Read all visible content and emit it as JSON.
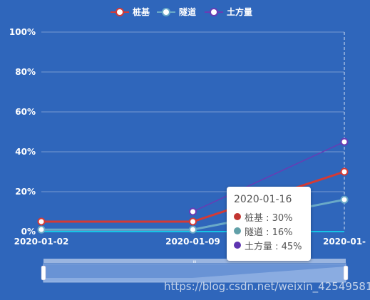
{
  "chart_data": {
    "type": "line",
    "categories": [
      "2020-01-02",
      "2020-01-09",
      "2020-01-16"
    ],
    "series": [
      {
        "name": "桩基",
        "values": [
          5,
          5,
          30
        ],
        "color": "#d43a35"
      },
      {
        "name": "隧道",
        "values": [
          1,
          1,
          16
        ],
        "color": "#6aaac8"
      },
      {
        "name": "土方量",
        "values": [
          null,
          10,
          45
        ],
        "color": "#6a3bb4"
      }
    ],
    "ylim": [
      0,
      100
    ],
    "yticks": [
      "0%",
      "20%",
      "40%",
      "60%",
      "80%",
      "100%"
    ],
    "xtick_labels": [
      "2020-01-02",
      "2020-01-09",
      "2020-01-"
    ],
    "legend_position": "top-center",
    "grid": true
  },
  "tooltip": {
    "title": "2020-01-16",
    "rows": [
      {
        "text": "桩基 : 30%",
        "color": "#c23531"
      },
      {
        "text": "隧道 : 16%",
        "color": "#61a0a8"
      },
      {
        "text": "土方量 : 45%",
        "color": "#5e35b1"
      }
    ]
  },
  "datazoom": {
    "handle_label": "ııı"
  },
  "watermark": "https://blog.csdn.net/weixin_42549581"
}
